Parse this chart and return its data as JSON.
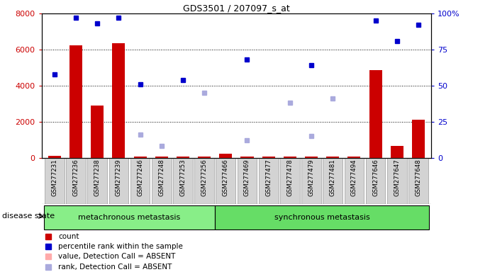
{
  "title": "GDS3501 / 207097_s_at",
  "samples": [
    "GSM277231",
    "GSM277236",
    "GSM277238",
    "GSM277239",
    "GSM277246",
    "GSM277248",
    "GSM277253",
    "GSM277256",
    "GSM277466",
    "GSM277469",
    "GSM277477",
    "GSM277478",
    "GSM277479",
    "GSM277481",
    "GSM277494",
    "GSM277646",
    "GSM277647",
    "GSM277648"
  ],
  "bar_values": [
    100,
    6250,
    2900,
    6350,
    80,
    80,
    80,
    80,
    230,
    80,
    80,
    80,
    80,
    80,
    80,
    4850,
    650,
    2100
  ],
  "blue_pct": [
    58,
    97,
    93,
    97,
    51,
    null,
    54,
    null,
    null,
    68,
    null,
    null,
    64,
    null,
    null,
    95,
    81,
    92
  ],
  "light_blue_pct": [
    null,
    null,
    null,
    null,
    16,
    8,
    null,
    45,
    null,
    12,
    null,
    38,
    15,
    41,
    null,
    null,
    null,
    null
  ],
  "metachronous_count": 8,
  "synchronous_count": 10,
  "ylim_left": [
    0,
    8000
  ],
  "ylim_right": [
    0,
    100
  ],
  "yticks_left": [
    0,
    2000,
    4000,
    6000,
    8000
  ],
  "yticks_right": [
    0,
    25,
    50,
    75,
    100
  ],
  "bar_color": "#cc0000",
  "blue_sq_color": "#0000cc",
  "light_blue_color": "#aaaadd",
  "light_pink_color": "#ffaaaa",
  "meta_color": "#88ee88",
  "sync_color": "#66dd66",
  "plot_bg": "#ffffff",
  "left_tick_color": "#cc0000",
  "right_tick_color": "#0000cc",
  "disease_state_label": "disease state",
  "meta_label": "metachronous metastasis",
  "sync_label": "synchronous metastasis",
  "legend_items": [
    "count",
    "percentile rank within the sample",
    "value, Detection Call = ABSENT",
    "rank, Detection Call = ABSENT"
  ],
  "legend_colors": [
    "#cc0000",
    "#0000cc",
    "#ffaaaa",
    "#aaaadd"
  ]
}
